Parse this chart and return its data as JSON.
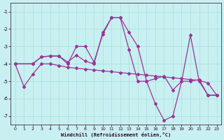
{
  "xlabel": "Windchill (Refroidissement éolien,°C)",
  "bg_color": "#c8f0f0",
  "line_color": "#993399",
  "grid_color": "#aadddd",
  "ylim": [
    -7.5,
    -0.5
  ],
  "xlim": [
    -0.5,
    23.5
  ],
  "yticks": [
    -7,
    -6,
    -5,
    -4,
    -3,
    -2,
    -1
  ],
  "xticks": [
    0,
    1,
    2,
    3,
    4,
    5,
    6,
    7,
    8,
    9,
    10,
    11,
    12,
    13,
    14,
    15,
    16,
    17,
    18,
    19,
    20,
    21,
    22,
    23
  ],
  "line1_x": [
    0,
    1,
    2,
    3,
    4,
    5,
    6,
    7,
    8,
    9,
    10,
    11,
    12,
    13,
    14,
    15,
    16,
    17,
    18,
    19,
    20,
    21,
    22,
    23
  ],
  "line1_y": [
    -4.0,
    -5.3,
    -4.6,
    -4.0,
    -4.0,
    -4.1,
    -4.2,
    -4.25,
    -4.3,
    -4.35,
    -4.4,
    -4.45,
    -4.5,
    -4.55,
    -4.6,
    -4.65,
    -4.7,
    -4.75,
    -4.8,
    -4.85,
    -4.9,
    -4.95,
    -5.1,
    -5.8
  ],
  "line2_x": [
    0,
    2,
    3,
    4,
    5,
    6,
    7,
    8,
    9,
    10,
    11,
    12,
    13,
    14,
    15,
    16,
    17,
    18,
    19,
    20,
    21,
    22,
    23
  ],
  "line2_y": [
    -4.0,
    -4.0,
    -3.6,
    -3.55,
    -3.55,
    -3.9,
    -3.5,
    -3.85,
    -4.0,
    -2.2,
    -1.35,
    -1.35,
    -2.2,
    -3.0,
    -5.0,
    -6.3,
    -7.25,
    -7.0,
    -5.0,
    -2.35,
    -5.0,
    -5.8,
    -5.8
  ],
  "line3_x": [
    0,
    2,
    3,
    4,
    5,
    6,
    7,
    8,
    9,
    10,
    11,
    12,
    13,
    14,
    15,
    16,
    17,
    18,
    19,
    20,
    21,
    22,
    23
  ],
  "line3_y": [
    -4.0,
    -4.0,
    -3.6,
    -3.55,
    -3.55,
    -4.0,
    -3.0,
    -3.0,
    -3.9,
    -2.3,
    -1.35,
    -1.35,
    -3.2,
    -5.0,
    -5.0,
    -4.85,
    -4.7,
    -5.5,
    -5.0,
    -5.0,
    -4.9,
    -5.8,
    -5.8
  ]
}
